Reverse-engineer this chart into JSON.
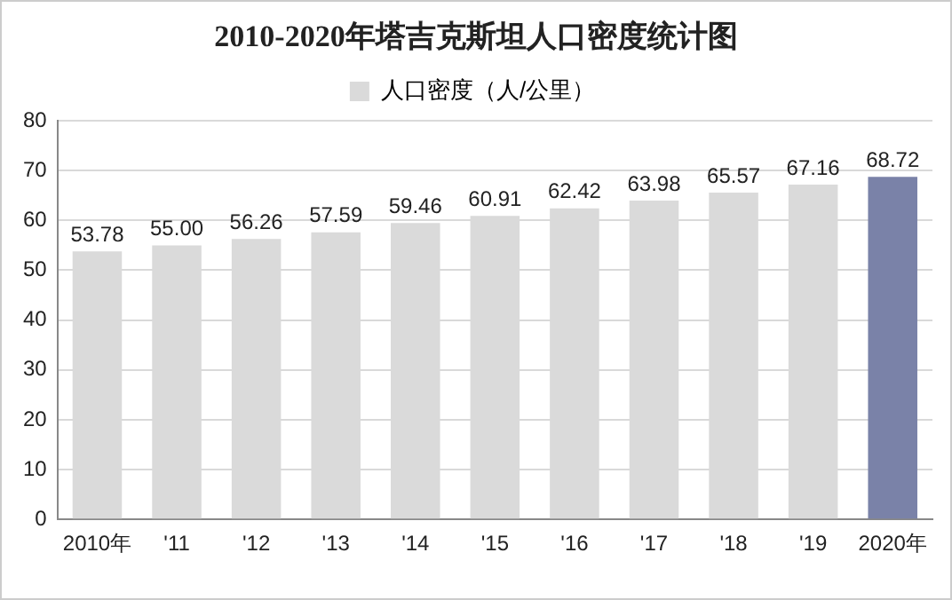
{
  "chart_data": {
    "type": "bar",
    "title": "2010-2020年塔吉克斯坦人口密度统计图",
    "categories": [
      "2010年",
      "'11",
      "'12",
      "'13",
      "'14",
      "'15",
      "'16",
      "'17",
      "'18",
      "'19",
      "2020年"
    ],
    "series": [
      {
        "name": "人口密度（人/公里）",
        "color": "#dadada",
        "colors": [
          "#dadada",
          "#dadada",
          "#dadada",
          "#dadada",
          "#dadada",
          "#dadada",
          "#dadada",
          "#dadada",
          "#dadada",
          "#dadada",
          "#7a82a8"
        ],
        "values": [
          53.78,
          55.0,
          56.26,
          57.59,
          59.46,
          60.91,
          62.42,
          63.98,
          65.57,
          67.16,
          68.72
        ],
        "value_labels": [
          "53.78",
          "55.00",
          "56.26",
          "57.59",
          "59.46",
          "60.91",
          "62.42",
          "63.98",
          "65.57",
          "67.16",
          "68.72"
        ]
      }
    ],
    "ylim": [
      0,
      80
    ],
    "yticks": [
      0,
      10,
      20,
      30,
      40,
      50,
      60,
      70,
      80
    ],
    "grid": "y",
    "legend": "top"
  }
}
